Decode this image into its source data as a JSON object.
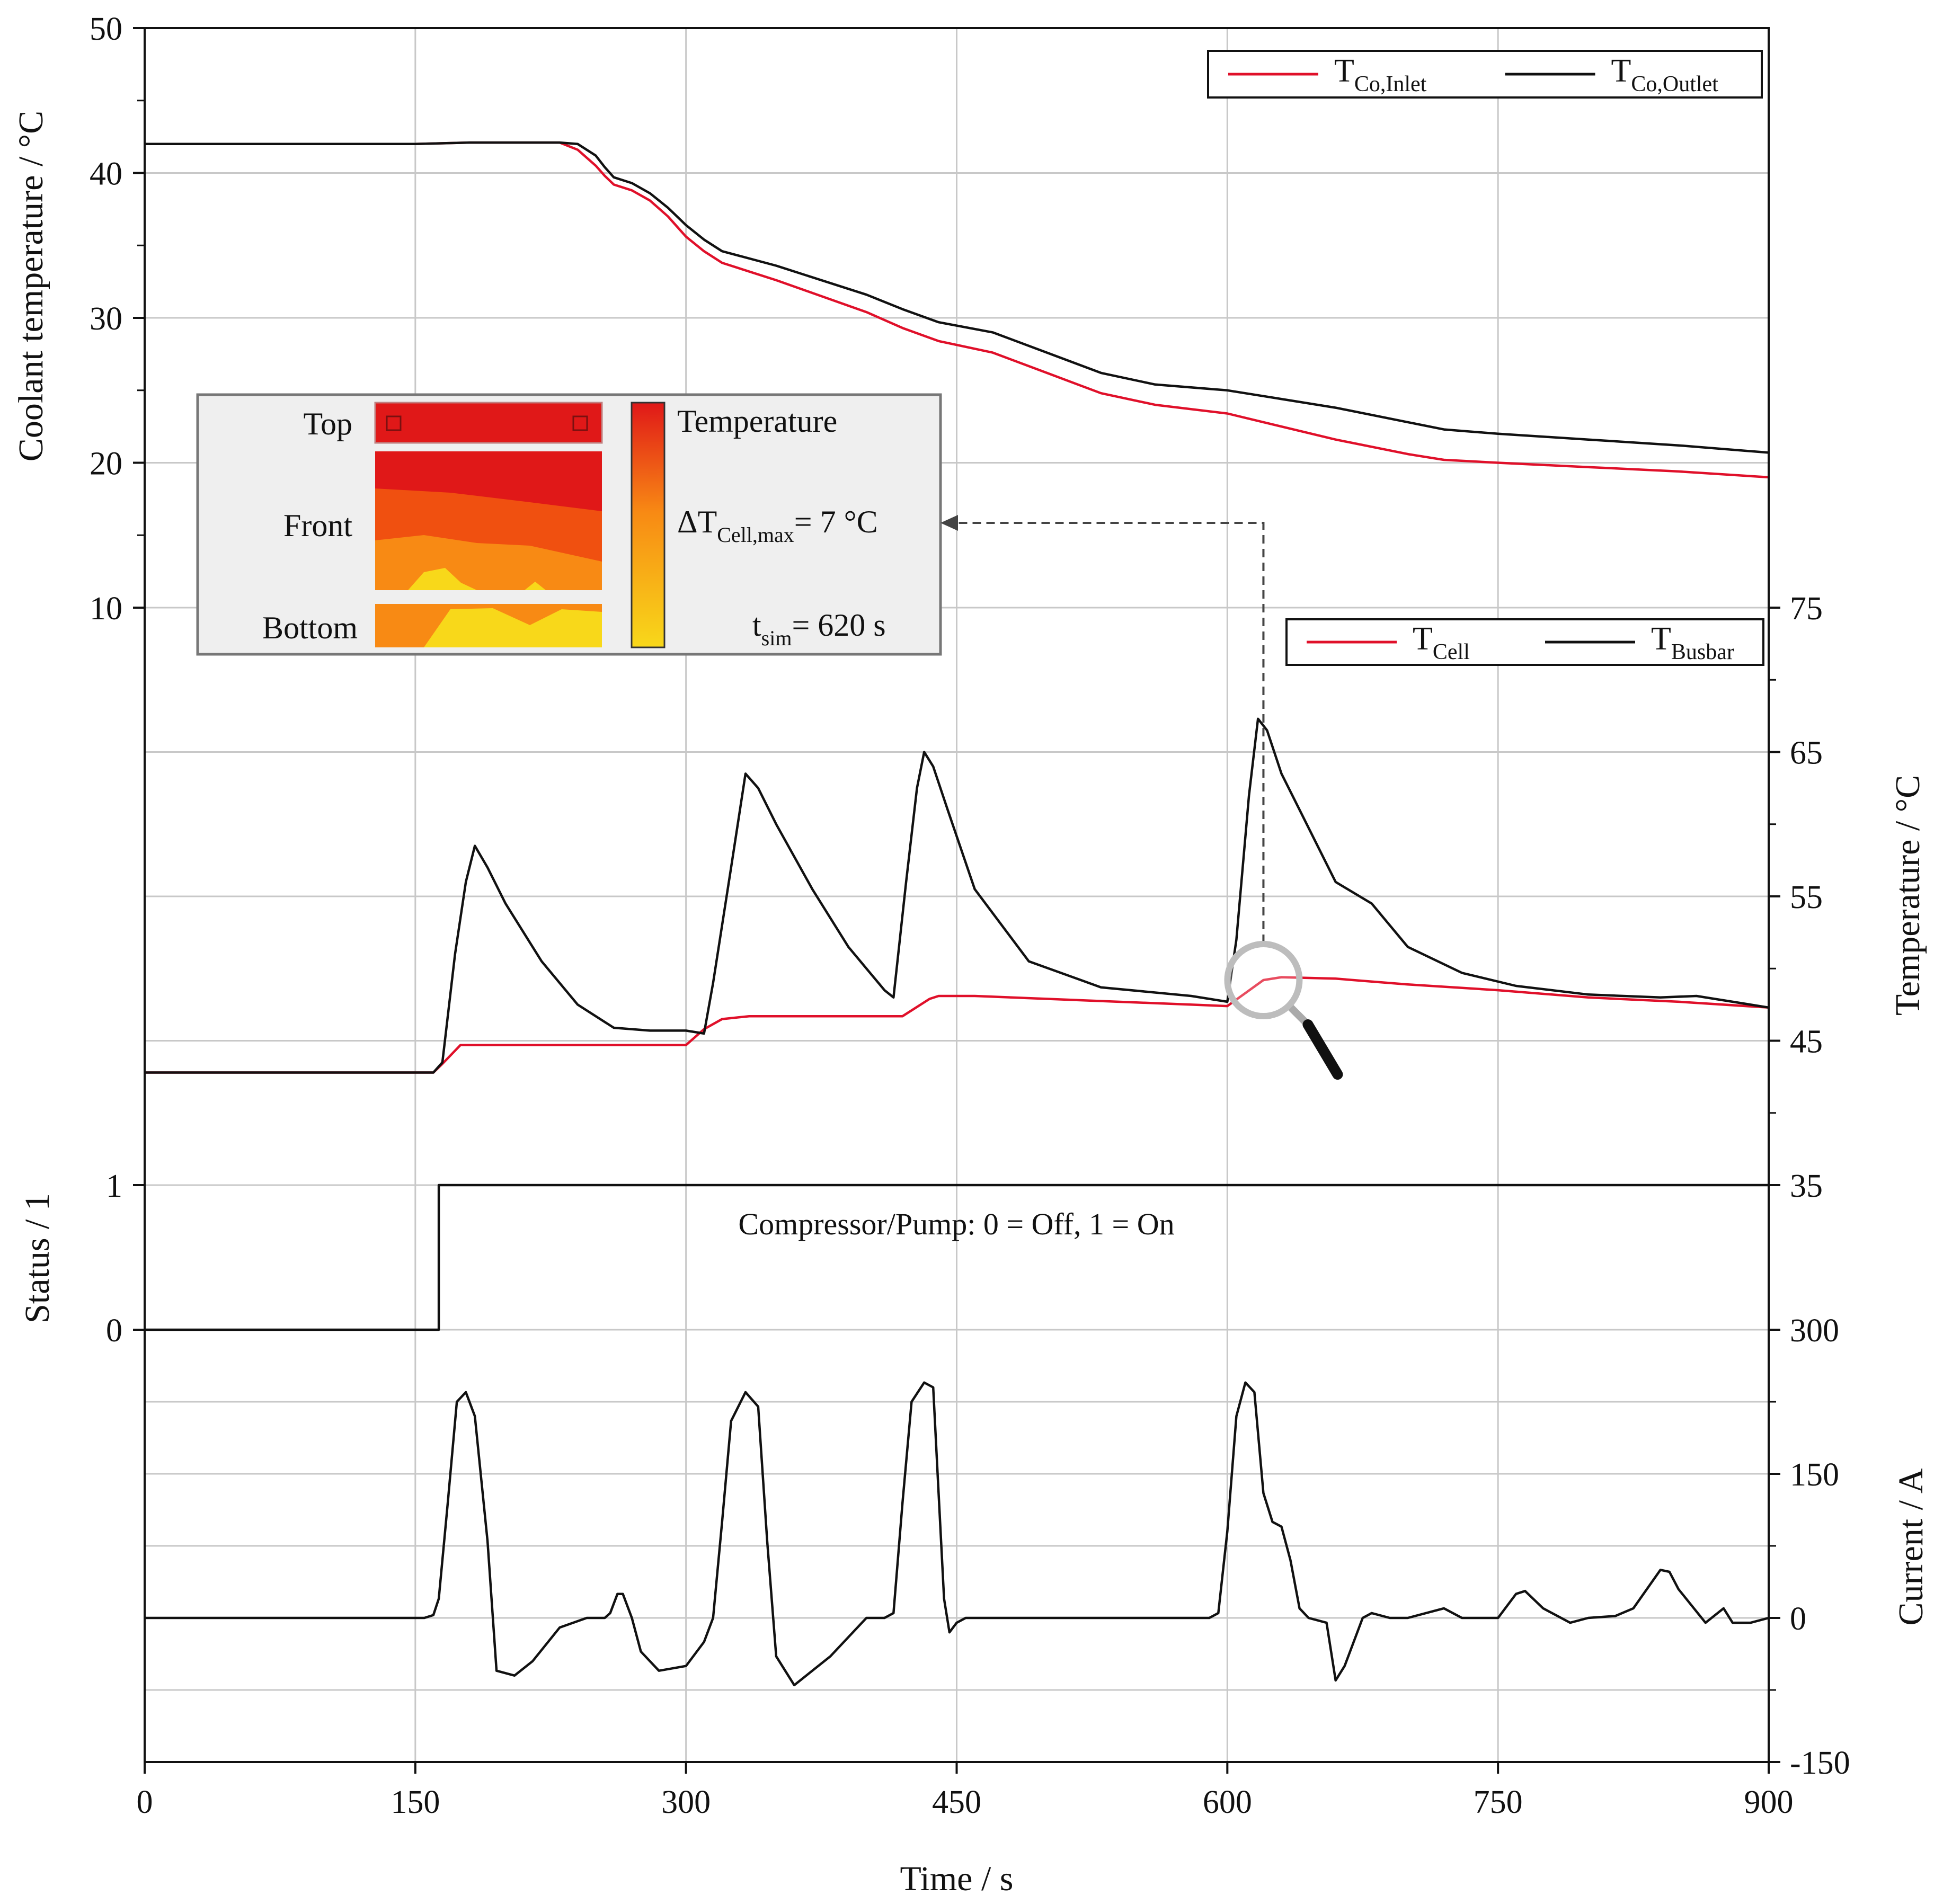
{
  "chart_data": {
    "type": "line",
    "x": {
      "label": "Time / s",
      "range": [
        0,
        900
      ],
      "ticks": [
        0,
        150,
        300,
        450,
        600,
        750,
        900
      ]
    },
    "panels": [
      {
        "id": "coolant",
        "ylabel": "Coolant temperature / °C",
        "ylabel_side": "left",
        "ylim": [
          10,
          50
        ],
        "yticks": [
          10,
          20,
          30,
          40,
          50
        ],
        "legend": {
          "placement": "top-right",
          "entries": [
            "T_Co,Inlet",
            "T_Co,Outlet"
          ]
        },
        "series": [
          {
            "name": "T_Co,Inlet",
            "sub": "Co,Inlet",
            "color": "#e0102a",
            "x": [
              0,
              150,
              180,
              230,
              240,
              250,
              255,
              260,
              270,
              280,
              290,
              300,
              310,
              320,
              350,
              400,
              420,
              440,
              470,
              500,
              530,
              560,
              600,
              620,
              660,
              700,
              720,
              750,
              800,
              850,
              900
            ],
            "y": [
              42.0,
              42.0,
              42.1,
              42.1,
              41.6,
              40.5,
              39.8,
              39.2,
              38.8,
              38.1,
              37.0,
              35.6,
              34.6,
              33.8,
              32.6,
              30.4,
              29.3,
              28.4,
              27.6,
              26.2,
              24.8,
              24.0,
              23.4,
              22.8,
              21.6,
              20.6,
              20.2,
              20.0,
              19.7,
              19.4,
              19.0
            ]
          },
          {
            "name": "T_Co,Outlet",
            "sub": "Co,Outlet",
            "color": "#111111",
            "x": [
              0,
              150,
              180,
              230,
              240,
              250,
              255,
              260,
              270,
              280,
              290,
              300,
              310,
              320,
              350,
              400,
              420,
              440,
              470,
              500,
              530,
              560,
              600,
              620,
              660,
              700,
              720,
              750,
              800,
              850,
              900
            ],
            "y": [
              42.0,
              42.0,
              42.1,
              42.1,
              42.0,
              41.2,
              40.4,
              39.7,
              39.3,
              38.6,
              37.6,
              36.4,
              35.4,
              34.6,
              33.6,
              31.6,
              30.6,
              29.7,
              29.0,
              27.6,
              26.2,
              25.4,
              25.0,
              24.6,
              23.8,
              22.8,
              22.3,
              22.0,
              21.6,
              21.2,
              20.7
            ]
          }
        ],
        "inset": {
          "labels": {
            "top": "Top",
            "front": "Front",
            "bottom": "Bottom"
          },
          "colorbar_title": "Temperature",
          "delta_main": "ΔT",
          "delta_sub": "Cell,max",
          "delta_value": "= 7 °C",
          "tsim_main": "t",
          "tsim_sub": "sim",
          "tsim_value": "= 620 s",
          "colors": {
            "hot": "#e01818",
            "mid": "#f05010",
            "warm": "#f88a14",
            "cool": "#f8d81a"
          }
        }
      },
      {
        "id": "temperature",
        "ylabel": "Temperature / °C",
        "ylabel_side": "right",
        "ylim": [
          35,
          75
        ],
        "yticks": [
          35,
          45,
          55,
          65,
          75
        ],
        "legend": {
          "placement": "top-right",
          "entries": [
            "T_Cell",
            "T_Busbar"
          ]
        },
        "series": [
          {
            "name": "T_Cell",
            "sub": "Cell",
            "color": "#e0102a",
            "x": [
              0,
              160,
              165,
              175,
              260,
              300,
              310,
              320,
              335,
              350,
              420,
              435,
              440,
              460,
              600,
              610,
              620,
              630,
              660,
              700,
              750,
              800,
              850,
              900
            ],
            "y": [
              42.8,
              42.8,
              43.4,
              44.7,
              44.7,
              44.7,
              45.8,
              46.5,
              46.7,
              46.7,
              46.7,
              47.9,
              48.1,
              48.1,
              47.4,
              48.3,
              49.2,
              49.4,
              49.3,
              48.9,
              48.5,
              48.0,
              47.7,
              47.3
            ]
          },
          {
            "name": "T_Busbar",
            "sub": "Busbar",
            "color": "#111111",
            "x": [
              0,
              160,
              165,
              172,
              178,
              183,
              190,
              200,
              220,
              240,
              260,
              280,
              300,
              310,
              315,
              325,
              333,
              340,
              350,
              370,
              390,
              410,
              415,
              422,
              428,
              432,
              437,
              445,
              460,
              490,
              530,
              580,
              600,
              605,
              612,
              617,
              622,
              630,
              640,
              660,
              680,
              700,
              730,
              760,
              800,
              840,
              860,
              900
            ],
            "y": [
              42.8,
              42.8,
              43.5,
              51.0,
              56.0,
              58.5,
              57.0,
              54.5,
              50.5,
              47.5,
              45.9,
              45.7,
              45.7,
              45.5,
              49.0,
              57.0,
              63.5,
              62.5,
              60.0,
              55.5,
              51.5,
              48.5,
              48.0,
              56.0,
              62.5,
              65.0,
              64.0,
              61.0,
              55.5,
              50.5,
              48.7,
              48.1,
              47.7,
              52.0,
              62.0,
              67.3,
              66.5,
              63.5,
              61.0,
              56.0,
              54.5,
              51.5,
              49.7,
              48.8,
              48.2,
              48.0,
              48.1,
              47.3
            ]
          }
        ]
      },
      {
        "id": "status",
        "ylabel": "Status / 1",
        "ylabel_side": "left",
        "ylim": [
          0,
          1
        ],
        "yticks": [
          0,
          1
        ],
        "annotation": "Compressor/Pump: 0 = Off, 1 = On",
        "series": [
          {
            "name": "Compressor/Pump status",
            "color": "#111111",
            "x": [
              0,
              163,
              163,
              900
            ],
            "y": [
              0,
              0,
              1,
              1
            ]
          }
        ]
      },
      {
        "id": "current",
        "ylabel": "Current / A",
        "ylabel_side": "right",
        "ylim": [
          -150,
          300
        ],
        "yticks": [
          -150,
          0,
          150,
          300
        ],
        "series": [
          {
            "name": "Current",
            "color": "#111111",
            "x": [
              0,
              155,
              160,
              163,
              168,
              173,
              178,
              183,
              190,
              195,
              205,
              215,
              230,
              245,
              255,
              258,
              262,
              265,
              270,
              275,
              285,
              300,
              310,
              315,
              320,
              325,
              333,
              340,
              345,
              350,
              360,
              380,
              400,
              410,
              415,
              420,
              425,
              432,
              437,
              440,
              443,
              446,
              450,
              455,
              460,
              480,
              500,
              550,
              590,
              595,
              600,
              605,
              610,
              615,
              620,
              625,
              630,
              635,
              640,
              645,
              655,
              660,
              665,
              675,
              680,
              690,
              700,
              720,
              730,
              740,
              750,
              760,
              765,
              775,
              790,
              800,
              815,
              825,
              840,
              845,
              850,
              865,
              875,
              880,
              890,
              900
            ],
            "y": [
              0,
              0,
              3,
              20,
              120,
              225,
              235,
              210,
              80,
              -55,
              -60,
              -45,
              -10,
              0,
              0,
              5,
              25,
              25,
              0,
              -35,
              -55,
              -50,
              -25,
              0,
              100,
              205,
              235,
              220,
              80,
              -40,
              -70,
              -40,
              0,
              0,
              5,
              120,
              225,
              245,
              240,
              130,
              20,
              -15,
              -5,
              0,
              0,
              0,
              0,
              0,
              0,
              5,
              90,
              210,
              245,
              235,
              130,
              100,
              95,
              60,
              10,
              0,
              -5,
              -65,
              -50,
              0,
              5,
              0,
              0,
              10,
              0,
              0,
              0,
              25,
              28,
              10,
              -5,
              0,
              2,
              10,
              50,
              48,
              30,
              -5,
              10,
              -5,
              -5,
              0
            ]
          }
        ]
      }
    ]
  }
}
